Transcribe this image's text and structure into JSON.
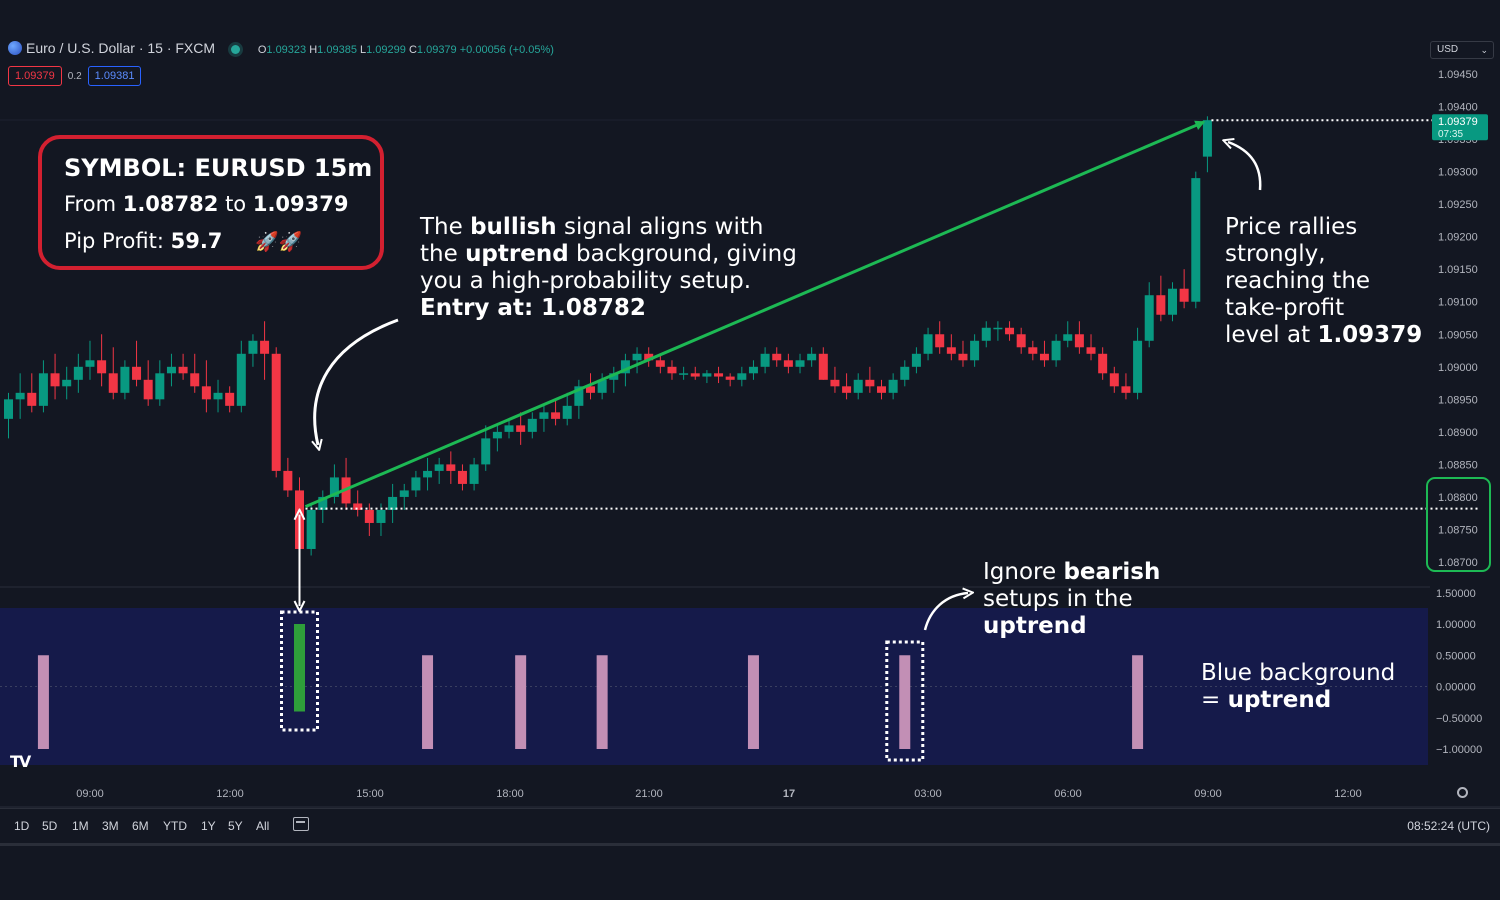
{
  "header": {
    "symbol": "Euro / U.S. Dollar · 15 · FXCM",
    "open_label": "O",
    "open": "1.09323",
    "high_label": "H",
    "high": "1.09385",
    "low_label": "L",
    "low": "1.09299",
    "close_label": "C",
    "close": "1.09379",
    "change": "+0.00056 (+0.05%)",
    "sell_price": "1.09379",
    "spread": "0.2",
    "buy_price": "1.09381",
    "currency": "USD"
  },
  "price_axis": {
    "ticks": [
      "1.09450",
      "1.09400",
      "1.09350",
      "1.09300",
      "1.09250",
      "1.09200",
      "1.09150",
      "1.09100",
      "1.09050",
      "1.09000",
      "1.08950",
      "1.08900",
      "1.08850",
      "1.08800",
      "1.08750",
      "1.08700"
    ],
    "current_price": "1.09379",
    "countdown": "07:35"
  },
  "indicator_axis": {
    "ticks": [
      "1.50000",
      "1.00000",
      "0.50000",
      "0.00000",
      "−0.50000",
      "−1.00000"
    ]
  },
  "time_axis": {
    "labels": [
      "09:00",
      "12:00",
      "15:00",
      "18:00",
      "21:00",
      "17",
      "03:00",
      "06:00",
      "09:00",
      "12:00"
    ]
  },
  "bottom_bar": {
    "ranges": [
      "1D",
      "5D",
      "1M",
      "3M",
      "6M",
      "YTD",
      "1Y",
      "5Y",
      "All"
    ],
    "clock": "08:52:24 (UTC)"
  },
  "annotations": {
    "symbol_title": "SYMBOL: EURUSD 15m",
    "from_label": "From",
    "from_value": "1.08782",
    "to_label": "to",
    "to_value": "1.09379",
    "pip_label": "Pip Profit:",
    "pip_value": "59.7",
    "rockets": "🚀🚀",
    "bullish_1": "The",
    "bullish_2": "bullish",
    "bullish_3": "signal aligns with",
    "bullish_4": "the",
    "bullish_5": "uptrend",
    "bullish_6": "background, giving",
    "bullish_7": "you a high-probability setup.",
    "entry": "Entry at: 1.08782",
    "rally_1": "Price rallies",
    "rally_2": "strongly,",
    "rally_3": "reaching the",
    "rally_4": "take-profit",
    "rally_5": "level at",
    "rally_6": "1.09379",
    "ignore_1": "Ignore",
    "ignore_2": "bearish",
    "ignore_3": "setups in the",
    "ignore_4": "uptrend",
    "blue_1": "Blue background",
    "blue_2": "=",
    "blue_3": "uptrend"
  },
  "colors": {
    "background": "#131722",
    "bull": "#089981",
    "bear": "#f23645",
    "uptrend_bg": "#151a4a",
    "signal_bull": "#2e9e3a",
    "signal_bear": "#c28fb5",
    "trend_arrow": "#1db954",
    "highlight_red": "#d32030"
  },
  "chart_data": {
    "type": "candlestick",
    "interval": "15m",
    "ylim": [
      1.0868,
      1.0947
    ],
    "entry_price": 1.08782,
    "take_profit": 1.09379,
    "candles": [
      [
        1.0892,
        1.0896,
        1.0889,
        1.0895
      ],
      [
        1.0895,
        1.0899,
        1.0892,
        1.0896
      ],
      [
        1.0896,
        1.0899,
        1.0893,
        1.0894
      ],
      [
        1.0894,
        1.0901,
        1.0893,
        1.0899
      ],
      [
        1.0899,
        1.0902,
        1.0895,
        1.0897
      ],
      [
        1.0897,
        1.09,
        1.0895,
        1.0898
      ],
      [
        1.0898,
        1.0902,
        1.0896,
        1.09
      ],
      [
        1.09,
        1.0904,
        1.0898,
        1.0901
      ],
      [
        1.0901,
        1.0905,
        1.0897,
        1.0899
      ],
      [
        1.0899,
        1.0903,
        1.0895,
        1.0896
      ],
      [
        1.0896,
        1.0901,
        1.0895,
        1.09
      ],
      [
        1.09,
        1.0904,
        1.0897,
        1.0898
      ],
      [
        1.0898,
        1.0901,
        1.0894,
        1.0895
      ],
      [
        1.0895,
        1.0901,
        1.0894,
        1.0899
      ],
      [
        1.0899,
        1.0902,
        1.0897,
        1.09
      ],
      [
        1.09,
        1.0902,
        1.0898,
        1.0899
      ],
      [
        1.0899,
        1.0902,
        1.0896,
        1.0897
      ],
      [
        1.0897,
        1.0901,
        1.0893,
        1.0895
      ],
      [
        1.0895,
        1.0898,
        1.0893,
        1.0896
      ],
      [
        1.0896,
        1.0897,
        1.0893,
        1.0894
      ],
      [
        1.0894,
        1.0904,
        1.0893,
        1.0902
      ],
      [
        1.0902,
        1.0905,
        1.09,
        1.0904
      ],
      [
        1.0904,
        1.0907,
        1.0898,
        1.0902
      ],
      [
        1.0902,
        1.0903,
        1.0883,
        1.0884
      ],
      [
        1.0884,
        1.0886,
        1.088,
        1.0881
      ],
      [
        1.0881,
        1.0883,
        1.0871,
        1.0872
      ],
      [
        1.0872,
        1.0879,
        1.0871,
        1.0878
      ],
      [
        1.0878,
        1.0881,
        1.0876,
        1.088
      ],
      [
        1.088,
        1.0885,
        1.0879,
        1.0883
      ],
      [
        1.0883,
        1.0886,
        1.0878,
        1.0879
      ],
      [
        1.0879,
        1.0881,
        1.0877,
        1.0878
      ],
      [
        1.0878,
        1.0879,
        1.0874,
        1.0876
      ],
      [
        1.0876,
        1.0879,
        1.0874,
        1.0878
      ],
      [
        1.0878,
        1.0882,
        1.0876,
        1.088
      ],
      [
        1.088,
        1.0882,
        1.0878,
        1.0881
      ],
      [
        1.0881,
        1.0884,
        1.088,
        1.0883
      ],
      [
        1.0883,
        1.0886,
        1.0881,
        1.0884
      ],
      [
        1.0884,
        1.0886,
        1.0882,
        1.0885
      ],
      [
        1.0885,
        1.0887,
        1.0882,
        1.0884
      ],
      [
        1.0884,
        1.0885,
        1.0881,
        1.0882
      ],
      [
        1.0882,
        1.0886,
        1.0881,
        1.0885
      ],
      [
        1.0885,
        1.0891,
        1.0884,
        1.0889
      ],
      [
        1.0889,
        1.0891,
        1.0887,
        1.089
      ],
      [
        1.089,
        1.0892,
        1.0889,
        1.0891
      ],
      [
        1.0891,
        1.0893,
        1.0888,
        1.089
      ],
      [
        1.089,
        1.0893,
        1.0889,
        1.0892
      ],
      [
        1.0892,
        1.0894,
        1.089,
        1.0893
      ],
      [
        1.0893,
        1.0895,
        1.0891,
        1.0892
      ],
      [
        1.0892,
        1.0896,
        1.0891,
        1.0894
      ],
      [
        1.0894,
        1.0898,
        1.0892,
        1.0897
      ],
      [
        1.0897,
        1.0899,
        1.0895,
        1.0896
      ],
      [
        1.0896,
        1.0899,
        1.0895,
        1.0898
      ],
      [
        1.0898,
        1.09,
        1.0896,
        1.0899
      ],
      [
        1.0899,
        1.0902,
        1.0897,
        1.0901
      ],
      [
        1.0901,
        1.0903,
        1.0899,
        1.0902
      ],
      [
        1.0902,
        1.0903,
        1.09,
        1.0901
      ],
      [
        1.0901,
        1.0902,
        1.0899,
        1.09
      ],
      [
        1.09,
        1.0901,
        1.0898,
        1.0899
      ],
      [
        1.0899,
        1.09,
        1.0898,
        1.0899
      ],
      [
        1.0899,
        1.09,
        1.0898,
        1.08985
      ],
      [
        1.08985,
        1.08995,
        1.08975,
        1.0899
      ],
      [
        1.0899,
        1.09,
        1.08975,
        1.08985
      ],
      [
        1.08985,
        1.0899,
        1.0897,
        1.0898
      ],
      [
        1.0898,
        1.09,
        1.0897,
        1.0899
      ],
      [
        1.0899,
        1.0901,
        1.0898,
        1.09
      ],
      [
        1.09,
        1.0903,
        1.0899,
        1.0902
      ],
      [
        1.0902,
        1.0903,
        1.09,
        1.0901
      ],
      [
        1.0901,
        1.0902,
        1.0899,
        1.09
      ],
      [
        1.09,
        1.0902,
        1.0899,
        1.0901
      ],
      [
        1.0901,
        1.0903,
        1.09,
        1.0902
      ],
      [
        1.0902,
        1.0903,
        1.0898,
        1.0898
      ],
      [
        1.0898,
        1.09,
        1.0896,
        1.0897
      ],
      [
        1.0897,
        1.0899,
        1.0895,
        1.0896
      ],
      [
        1.0896,
        1.0899,
        1.0895,
        1.0898
      ],
      [
        1.0898,
        1.09,
        1.0896,
        1.0897
      ],
      [
        1.0897,
        1.0898,
        1.0895,
        1.0896
      ],
      [
        1.0896,
        1.0899,
        1.0895,
        1.0898
      ],
      [
        1.0898,
        1.0901,
        1.0897,
        1.09
      ],
      [
        1.09,
        1.0903,
        1.0899,
        1.0902
      ],
      [
        1.0902,
        1.0906,
        1.0901,
        1.0905
      ],
      [
        1.0905,
        1.0907,
        1.0902,
        1.0903
      ],
      [
        1.0903,
        1.0905,
        1.0901,
        1.0902
      ],
      [
        1.0902,
        1.0904,
        1.09,
        1.0901
      ],
      [
        1.0901,
        1.0905,
        1.09,
        1.0904
      ],
      [
        1.0904,
        1.0907,
        1.0903,
        1.0906
      ],
      [
        1.0906,
        1.0907,
        1.0904,
        1.0906
      ],
      [
        1.0906,
        1.0907,
        1.0904,
        1.0905
      ],
      [
        1.0905,
        1.0906,
        1.0902,
        1.0903
      ],
      [
        1.0903,
        1.0904,
        1.0901,
        1.0902
      ],
      [
        1.0902,
        1.0904,
        1.09,
        1.0901
      ],
      [
        1.0901,
        1.0905,
        1.09,
        1.0904
      ],
      [
        1.0904,
        1.0907,
        1.0903,
        1.0905
      ],
      [
        1.0905,
        1.0907,
        1.0902,
        1.0903
      ],
      [
        1.0903,
        1.0905,
        1.0901,
        1.0902
      ],
      [
        1.0902,
        1.0903,
        1.0898,
        1.0899
      ],
      [
        1.0899,
        1.09,
        1.0896,
        1.0897
      ],
      [
        1.0897,
        1.0899,
        1.0895,
        1.0896
      ],
      [
        1.0896,
        1.0906,
        1.0895,
        1.0904
      ],
      [
        1.0904,
        1.0913,
        1.0903,
        1.0911
      ],
      [
        1.0911,
        1.0914,
        1.0907,
        1.0908
      ],
      [
        1.0908,
        1.0913,
        1.0907,
        1.0912
      ],
      [
        1.0912,
        1.0915,
        1.0909,
        1.091
      ],
      [
        1.091,
        1.093,
        1.0909,
        1.0929
      ],
      [
        1.09323,
        1.09385,
        1.09299,
        1.09379
      ]
    ],
    "signals": [
      {
        "index": 3,
        "type": "bearish",
        "value": 1
      },
      {
        "index": 25,
        "type": "bullish",
        "value": 1
      },
      {
        "index": 36,
        "type": "bearish",
        "value": 1
      },
      {
        "index": 44,
        "type": "bearish",
        "value": 1
      },
      {
        "index": 51,
        "type": "bearish",
        "value": 1
      },
      {
        "index": 64,
        "type": "bearish",
        "value": 1
      },
      {
        "index": 77,
        "type": "bearish",
        "value": 1
      },
      {
        "index": 97,
        "type": "bearish",
        "value": 1
      }
    ],
    "background_state": "uptrend",
    "indicator_ylim": [
      -1.2,
      1.5
    ]
  }
}
